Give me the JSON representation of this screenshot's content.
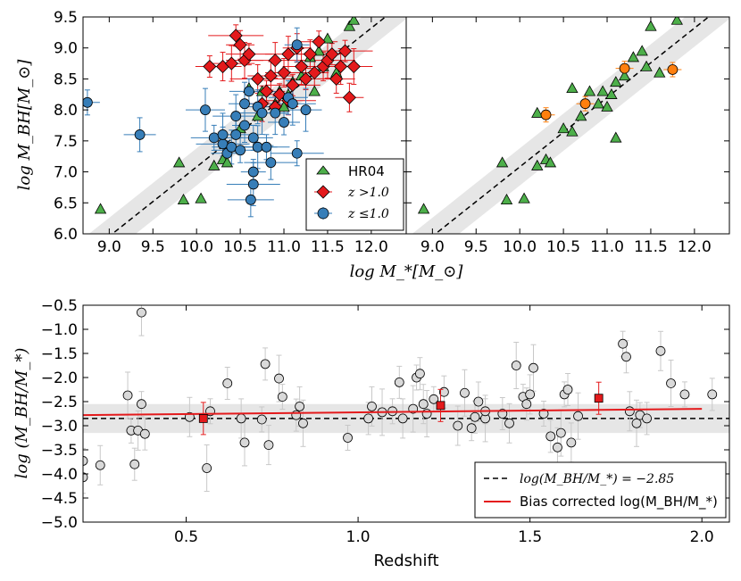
{
  "colors": {
    "green": "#4daf4a",
    "red": "#e41a1c",
    "blue": "#377eb8",
    "orange": "#ff7f0e",
    "gray_marker": "#d9d9d9",
    "gray_band": "#e6e6e6",
    "corrected_line": "#e41a1c"
  },
  "chart_data": [
    {
      "id": "top-left",
      "type": "scatter",
      "xlabel": "log M_*[M_⊙]",
      "ylabel": "log M_BH[M_⊙]",
      "xlim": [
        8.7,
        12.4
      ],
      "ylim": [
        6.0,
        9.5
      ],
      "xticks": [
        "9.0",
        "9.5",
        "10.0",
        "10.5",
        "11.0",
        "11.5",
        "12.0"
      ],
      "yticks": [
        "6.0",
        "6.5",
        "7.0",
        "7.5",
        "8.0",
        "8.5",
        "9.0",
        "9.5"
      ],
      "relation": {
        "slope": 1.12,
        "intercept": -4.12,
        "band_halfwidth": 0.3
      },
      "legend": [
        "HR04",
        "z >1.0",
        "z ≤1.0"
      ],
      "series": [
        {
          "name": "HR04",
          "marker": "triangle",
          "points": [
            [
              8.9,
              6.4
            ],
            [
              9.8,
              7.15
            ],
            [
              9.85,
              6.55
            ],
            [
              10.05,
              6.57
            ],
            [
              10.2,
              7.1
            ],
            [
              10.3,
              7.2
            ],
            [
              10.35,
              7.15
            ],
            [
              10.5,
              7.7
            ],
            [
              10.6,
              8.35
            ],
            [
              10.7,
              7.9
            ],
            [
              10.75,
              8.3
            ],
            [
              10.9,
              8.1
            ],
            [
              10.95,
              8.3
            ],
            [
              11.0,
              8.05
            ],
            [
              11.05,
              8.25
            ],
            [
              11.1,
              8.45
            ],
            [
              11.2,
              8.55
            ],
            [
              11.3,
              8.85
            ],
            [
              11.35,
              8.3
            ],
            [
              11.4,
              8.95
            ],
            [
              11.45,
              8.7
            ],
            [
              11.5,
              9.15
            ],
            [
              11.6,
              8.6
            ],
            [
              11.75,
              9.35
            ],
            [
              11.8,
              9.45
            ]
          ]
        },
        {
          "name": "z>1.0",
          "marker": "diamond",
          "points": [
            [
              10.15,
              8.7
            ],
            [
              10.3,
              8.7
            ],
            [
              10.4,
              8.75
            ],
            [
              10.45,
              9.2
            ],
            [
              10.5,
              9.05
            ],
            [
              10.55,
              8.8
            ],
            [
              10.6,
              8.9
            ],
            [
              10.7,
              8.5
            ],
            [
              10.75,
              8.1
            ],
            [
              10.8,
              8.3
            ],
            [
              10.85,
              8.55
            ],
            [
              10.9,
              8.8
            ],
            [
              10.95,
              8.25
            ],
            [
              11.0,
              8.6
            ],
            [
              11.05,
              8.9
            ],
            [
              11.1,
              8.4
            ],
            [
              11.15,
              9.0
            ],
            [
              11.2,
              8.7
            ],
            [
              11.25,
              8.5
            ],
            [
              11.3,
              8.9
            ],
            [
              11.35,
              8.6
            ],
            [
              11.4,
              9.1
            ],
            [
              11.45,
              8.7
            ],
            [
              11.5,
              8.8
            ],
            [
              11.55,
              8.9
            ],
            [
              11.6,
              8.5
            ],
            [
              11.65,
              8.7
            ],
            [
              11.7,
              8.95
            ],
            [
              11.75,
              8.2
            ],
            [
              11.8,
              8.7
            ],
            [
              10.9,
              8.05
            ],
            [
              11.05,
              8.15
            ]
          ]
        },
        {
          "name": "z<=1.0",
          "marker": "circle",
          "points": [
            [
              8.75,
              8.12
            ],
            [
              9.35,
              7.6
            ],
            [
              10.1,
              8.0
            ],
            [
              10.2,
              7.55
            ],
            [
              10.3,
              7.45
            ],
            [
              10.3,
              7.6
            ],
            [
              10.35,
              7.3
            ],
            [
              10.4,
              7.4
            ],
            [
              10.45,
              7.9
            ],
            [
              10.5,
              7.35
            ],
            [
              10.55,
              7.75
            ],
            [
              10.55,
              8.1
            ],
            [
              10.6,
              8.3
            ],
            [
              10.62,
              6.55
            ],
            [
              10.65,
              6.8
            ],
            [
              10.65,
              7.0
            ],
            [
              10.7,
              8.05
            ],
            [
              10.7,
              7.4
            ],
            [
              10.8,
              7.4
            ],
            [
              10.85,
              7.15
            ],
            [
              10.9,
              7.95
            ],
            [
              11.0,
              7.8
            ],
            [
              11.05,
              8.2
            ],
            [
              11.1,
              8.1
            ],
            [
              11.15,
              7.3
            ],
            [
              11.15,
              9.05
            ],
            [
              11.25,
              8.0
            ],
            [
              10.65,
              7.55
            ],
            [
              10.45,
              7.6
            ],
            [
              10.75,
              7.95
            ]
          ]
        }
      ]
    },
    {
      "id": "top-right",
      "type": "scatter",
      "xlim": [
        8.7,
        12.4
      ],
      "ylim": [
        6.0,
        9.5
      ],
      "xticks": [
        "9.0",
        "9.5",
        "10.0",
        "10.5",
        "11.0",
        "11.5",
        "12.0"
      ],
      "relation": {
        "slope": 1.12,
        "intercept": -4.12,
        "band_halfwidth": 0.3
      },
      "series": [
        {
          "name": "HR04",
          "marker": "triangle",
          "points": [
            [
              8.9,
              6.4
            ],
            [
              9.8,
              7.15
            ],
            [
              9.85,
              6.55
            ],
            [
              10.05,
              6.57
            ],
            [
              10.2,
              7.1
            ],
            [
              10.2,
              7.95
            ],
            [
              10.3,
              7.2
            ],
            [
              10.35,
              7.15
            ],
            [
              10.5,
              7.7
            ],
            [
              10.6,
              8.35
            ],
            [
              10.6,
              7.65
            ],
            [
              10.7,
              7.9
            ],
            [
              10.8,
              8.3
            ],
            [
              10.9,
              8.1
            ],
            [
              10.95,
              8.3
            ],
            [
              11.0,
              8.05
            ],
            [
              11.05,
              8.25
            ],
            [
              11.1,
              7.55
            ],
            [
              11.1,
              8.45
            ],
            [
              11.2,
              8.55
            ],
            [
              11.3,
              8.85
            ],
            [
              11.4,
              8.95
            ],
            [
              11.45,
              8.7
            ],
            [
              11.5,
              9.35
            ],
            [
              11.6,
              8.6
            ],
            [
              11.8,
              9.45
            ]
          ]
        },
        {
          "name": "binned",
          "marker": "circle-orange",
          "points": [
            [
              10.3,
              7.92
            ],
            [
              10.75,
              8.1
            ],
            [
              11.2,
              8.67
            ],
            [
              11.75,
              8.65
            ]
          ]
        }
      ]
    },
    {
      "id": "bottom",
      "type": "scatter",
      "xlabel": "Redshift",
      "ylabel": "log (M_BH/M_*)",
      "xlim": [
        0.2,
        2.08
      ],
      "ylim": [
        -5.0,
        -0.5
      ],
      "xticks": [
        "0.5",
        "1.0",
        "1.5",
        "2.0"
      ],
      "yticks": [
        "−0.5",
        "−1.0",
        "−1.5",
        "−2.0",
        "−2.5",
        "−3.0",
        "−3.5",
        "−4.0",
        "−4.5",
        "−5.0"
      ],
      "mean_ratio": -2.85,
      "band": [
        -3.15,
        -2.55
      ],
      "bias_corrected_line": [
        [
          0.2,
          -2.78
        ],
        [
          2.0,
          -2.65
        ]
      ],
      "legend": [
        "log(M_BH/M_*) = −2.85",
        "Bias corrected log(M_BH/M_*)"
      ],
      "points": [
        [
          0.2,
          -3.73
        ],
        [
          0.2,
          -4.07
        ],
        [
          0.25,
          -3.82
        ],
        [
          0.33,
          -2.37
        ],
        [
          0.34,
          -3.1
        ],
        [
          0.35,
          -3.8
        ],
        [
          0.36,
          -3.1
        ],
        [
          0.37,
          -0.65
        ],
        [
          0.37,
          -2.55
        ],
        [
          0.38,
          -3.17
        ],
        [
          0.51,
          -2.82
        ],
        [
          0.56,
          -3.88
        ],
        [
          0.57,
          -2.7
        ],
        [
          0.62,
          -2.12
        ],
        [
          0.66,
          -2.85
        ],
        [
          0.67,
          -3.35
        ],
        [
          0.72,
          -2.87
        ],
        [
          0.73,
          -1.72
        ],
        [
          0.74,
          -3.4
        ],
        [
          0.77,
          -2.02
        ],
        [
          0.78,
          -2.4
        ],
        [
          0.82,
          -2.78
        ],
        [
          0.83,
          -2.6
        ],
        [
          0.84,
          -2.95
        ],
        [
          0.97,
          -3.25
        ],
        [
          1.03,
          -2.85
        ],
        [
          1.04,
          -2.6
        ],
        [
          1.07,
          -2.72
        ],
        [
          1.1,
          -2.7
        ],
        [
          1.12,
          -2.1
        ],
        [
          1.13,
          -2.85
        ],
        [
          1.16,
          -2.65
        ],
        [
          1.17,
          -2.0
        ],
        [
          1.18,
          -1.92
        ],
        [
          1.19,
          -2.55
        ],
        [
          1.2,
          -2.75
        ],
        [
          1.22,
          -2.45
        ],
        [
          1.25,
          -2.3
        ],
        [
          1.29,
          -3.0
        ],
        [
          1.31,
          -2.32
        ],
        [
          1.33,
          -3.05
        ],
        [
          1.34,
          -2.82
        ],
        [
          1.35,
          -2.5
        ],
        [
          1.37,
          -2.85
        ],
        [
          1.37,
          -2.7
        ],
        [
          1.42,
          -2.75
        ],
        [
          1.44,
          -2.95
        ],
        [
          1.46,
          -1.75
        ],
        [
          1.48,
          -2.4
        ],
        [
          1.49,
          -2.55
        ],
        [
          1.5,
          -2.35
        ],
        [
          1.51,
          -1.8
        ],
        [
          1.54,
          -2.75
        ],
        [
          1.56,
          -3.22
        ],
        [
          1.58,
          -3.45
        ],
        [
          1.59,
          -3.15
        ],
        [
          1.6,
          -2.35
        ],
        [
          1.61,
          -2.25
        ],
        [
          1.62,
          -3.35
        ],
        [
          1.64,
          -2.8
        ],
        [
          1.77,
          -1.3
        ],
        [
          1.78,
          -1.57
        ],
        [
          1.79,
          -2.7
        ],
        [
          1.81,
          -2.95
        ],
        [
          1.82,
          -2.78
        ],
        [
          1.84,
          -2.85
        ],
        [
          1.88,
          -1.45
        ],
        [
          1.91,
          -2.12
        ],
        [
          1.95,
          -2.35
        ],
        [
          2.03,
          -2.35
        ]
      ],
      "corrected_points": [
        [
          0.55,
          -2.85
        ],
        [
          1.24,
          -2.58
        ],
        [
          1.7,
          -2.43
        ]
      ]
    }
  ]
}
